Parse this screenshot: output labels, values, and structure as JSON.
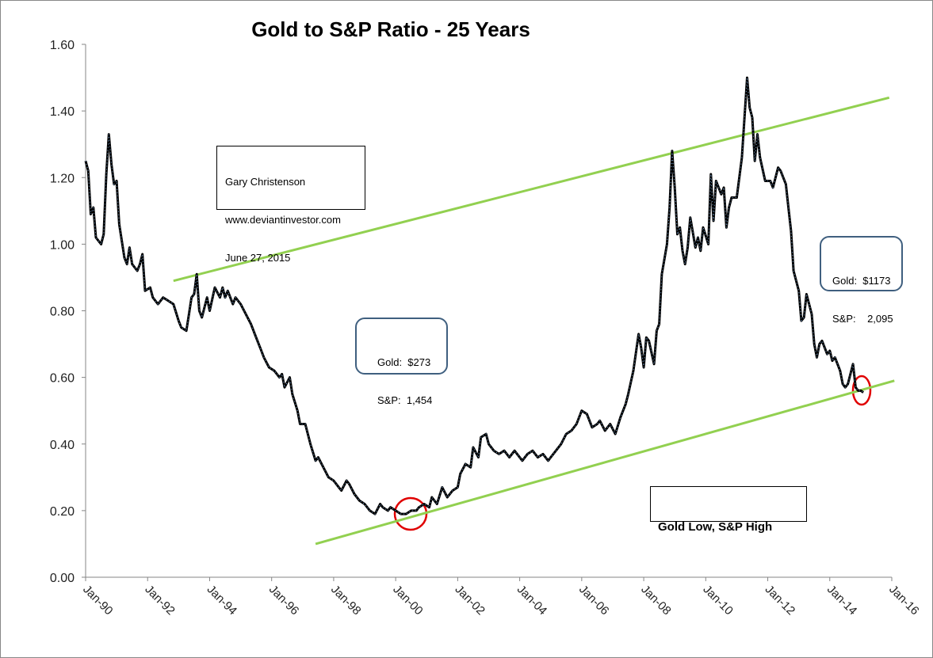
{
  "chart_data": {
    "type": "line",
    "title": "Gold to S&P Ratio - 25 Years",
    "color": "#000000",
    "x": [
      "Jan-90",
      "Feb-90",
      "Mar-90",
      "Apr-90",
      "May-90",
      "Jul-90",
      "Aug-90",
      "Sep-90",
      "Oct-90",
      "Nov-90",
      "Dec-90",
      "Jan-91",
      "Feb-91",
      "Apr-91",
      "May-91",
      "Jun-91",
      "Jul-91",
      "Sep-91",
      "Oct-91",
      "Nov-91",
      "Dec-91",
      "Feb-92",
      "Mar-92",
      "May-92",
      "Jul-92",
      "Sep-92",
      "Nov-92",
      "Jan-93",
      "Feb-93",
      "Apr-93",
      "May-93",
      "Jun-93",
      "Jul-93",
      "Aug-93",
      "Sep-93",
      "Oct-93",
      "Dec-93",
      "Jan-94",
      "Mar-94",
      "May-94",
      "Jun-94",
      "Jul-94",
      "Aug-94",
      "Oct-94",
      "Nov-94",
      "Jan-95",
      "Mar-95",
      "May-95",
      "Jul-95",
      "Sep-95",
      "Oct-95",
      "Dec-95",
      "Feb-96",
      "Apr-96",
      "May-96",
      "Jun-96",
      "Aug-96",
      "Sep-96",
      "Nov-96",
      "Dec-96",
      "Jan-97",
      "Feb-97",
      "Apr-97",
      "Jun-97",
      "Jul-97",
      "Sep-97",
      "Nov-97",
      "Jan-98",
      "Mar-98",
      "Apr-98",
      "Jun-98",
      "Jul-98",
      "Sep-98",
      "Nov-98",
      "Jan-99",
      "Mar-99",
      "May-99",
      "Jul-99",
      "Aug-99",
      "Oct-99",
      "Nov-99",
      "Jan-00",
      "Mar-00",
      "May-00",
      "Jul-00",
      "Sep-00",
      "Oct-00",
      "Dec-00",
      "Feb-01",
      "Mar-01",
      "May-01",
      "Jul-01",
      "Sep-01",
      "Nov-01",
      "Jan-02",
      "Feb-02",
      "Apr-02",
      "Jun-02",
      "Jul-02",
      "Sep-02",
      "Oct-02",
      "Dec-02",
      "Jan-03",
      "Mar-03",
      "May-03",
      "Jul-03",
      "Sep-03",
      "Nov-03",
      "Jan-04",
      "Feb-04",
      "Apr-04",
      "Jun-04",
      "Aug-04",
      "Oct-04",
      "Dec-04",
      "Jan-05",
      "Mar-05",
      "May-05",
      "Jul-05",
      "Sep-05",
      "Nov-05",
      "Jan-06",
      "Mar-06",
      "May-06",
      "Jul-06",
      "Aug-06",
      "Oct-06",
      "Dec-06",
      "Feb-07",
      "Apr-07",
      "Jun-07",
      "Jul-07",
      "Sep-07",
      "Nov-07",
      "Dec-07",
      "Jan-08",
      "Feb-08",
      "Mar-08",
      "May-08",
      "Jun-08",
      "Jul-08",
      "Aug-08",
      "Oct-08",
      "Nov-08",
      "Dec-08",
      "Jan-09",
      "Feb-09",
      "Mar-09",
      "Apr-09",
      "May-09",
      "Jun-09",
      "Jul-09",
      "Sep-09",
      "Oct-09",
      "Nov-09",
      "Dec-09",
      "Feb-10",
      "Mar-10",
      "Apr-10",
      "May-10",
      "Jul-10",
      "Aug-10",
      "Sep-10",
      "Oct-10",
      "Nov-10",
      "Jan-11",
      "Mar-11",
      "May-11",
      "Jun-11",
      "Jul-11",
      "Aug-11",
      "Sep-11",
      "Oct-11",
      "Dec-11",
      "Feb-12",
      "Mar-12",
      "May-12",
      "Jun-12",
      "Aug-12",
      "Sep-12",
      "Oct-12",
      "Nov-12",
      "Jan-13",
      "Feb-13",
      "Mar-13",
      "Apr-13",
      "Jun-13",
      "Jul-13",
      "Aug-13",
      "Sep-13",
      "Oct-13",
      "Dec-13",
      "Jan-14",
      "Feb-14",
      "Mar-14",
      "May-14",
      "Jun-14",
      "Jul-14",
      "Aug-14",
      "Oct-14",
      "Nov-14",
      "Dec-14",
      "Jan-15",
      "Feb-15"
    ],
    "values": [
      1.25,
      1.22,
      1.09,
      1.11,
      1.02,
      1.0,
      1.03,
      1.21,
      1.33,
      1.24,
      1.18,
      1.19,
      1.06,
      0.96,
      0.94,
      0.99,
      0.94,
      0.92,
      0.94,
      0.97,
      0.86,
      0.87,
      0.84,
      0.82,
      0.84,
      0.83,
      0.82,
      0.77,
      0.75,
      0.74,
      0.79,
      0.84,
      0.85,
      0.91,
      0.8,
      0.78,
      0.84,
      0.8,
      0.87,
      0.84,
      0.87,
      0.84,
      0.86,
      0.82,
      0.84,
      0.82,
      0.79,
      0.76,
      0.72,
      0.68,
      0.66,
      0.63,
      0.62,
      0.6,
      0.61,
      0.57,
      0.6,
      0.55,
      0.5,
      0.46,
      0.46,
      0.46,
      0.4,
      0.35,
      0.36,
      0.33,
      0.3,
      0.29,
      0.27,
      0.26,
      0.29,
      0.28,
      0.25,
      0.23,
      0.22,
      0.2,
      0.19,
      0.22,
      0.21,
      0.2,
      0.21,
      0.2,
      0.19,
      0.19,
      0.2,
      0.2,
      0.21,
      0.22,
      0.21,
      0.24,
      0.22,
      0.27,
      0.24,
      0.26,
      0.27,
      0.31,
      0.34,
      0.33,
      0.39,
      0.36,
      0.42,
      0.43,
      0.4,
      0.38,
      0.37,
      0.38,
      0.36,
      0.38,
      0.36,
      0.35,
      0.37,
      0.38,
      0.36,
      0.37,
      0.35,
      0.36,
      0.38,
      0.4,
      0.43,
      0.44,
      0.46,
      0.5,
      0.49,
      0.45,
      0.46,
      0.47,
      0.44,
      0.46,
      0.43,
      0.48,
      0.52,
      0.55,
      0.62,
      0.73,
      0.69,
      0.63,
      0.72,
      0.71,
      0.64,
      0.74,
      0.76,
      0.91,
      1.0,
      1.11,
      1.28,
      1.17,
      1.03,
      1.05,
      0.98,
      0.94,
      0.99,
      1.08,
      0.99,
      1.02,
      0.98,
      1.05,
      1.0,
      1.21,
      1.07,
      1.19,
      1.15,
      1.17,
      1.05,
      1.11,
      1.14,
      1.14,
      1.26,
      1.5,
      1.41,
      1.38,
      1.25,
      1.33,
      1.26,
      1.19,
      1.19,
      1.17,
      1.23,
      1.22,
      1.18,
      1.11,
      1.04,
      0.92,
      0.86,
      0.77,
      0.78,
      0.85,
      0.79,
      0.7,
      0.66,
      0.7,
      0.71,
      0.67,
      0.68,
      0.65,
      0.66,
      0.62,
      0.58,
      0.57,
      0.58,
      0.64,
      0.57,
      0.56,
      0.56,
      0.555
    ],
    "xlim": [
      "Jan-90",
      "Jan-16"
    ],
    "xticks": [
      "Jan-90",
      "Jan-92",
      "Jan-94",
      "Jan-96",
      "Jan-98",
      "Jan-00",
      "Jan-02",
      "Jan-04",
      "Jan-06",
      "Jan-08",
      "Jan-10",
      "Jan-12",
      "Jan-14",
      "Jan-16"
    ],
    "ylim": [
      0,
      1.6
    ],
    "yticks": [
      {
        "value": 0,
        "label": "0.00"
      },
      {
        "value": 0.2,
        "label": "0.20"
      },
      {
        "value": 0.4,
        "label": "0.40"
      },
      {
        "value": 0.6,
        "label": "0.60"
      },
      {
        "value": 0.8,
        "label": "0.80"
      },
      {
        "value": 1.0,
        "label": "1.00"
      },
      {
        "value": 1.2,
        "label": "1.20"
      },
      {
        "value": 1.4,
        "label": "1.40"
      },
      {
        "value": 1.6,
        "label": "1.60"
      }
    ],
    "grid": false,
    "trendlines": [
      {
        "x": [
          "Nov-92",
          "Dec-15"
        ],
        "y": [
          0.89,
          1.44
        ],
        "color": "#92d050"
      },
      {
        "x": [
          "Jun-97",
          "Feb-16"
        ],
        "y": [
          0.1,
          0.59
        ],
        "color": "#92d050"
      }
    ],
    "annotations": {
      "credit": [
        "Gary Christenson",
        "www.deviantinvestor.com",
        "June 27, 2015"
      ],
      "low_box": [
        "Gold:  $273",
        "S&P:  1,454"
      ],
      "recent_box": [
        "Gold:  $1173",
        "S&P:    2,095"
      ],
      "label_box": "Gold Low, S&P High"
    }
  }
}
